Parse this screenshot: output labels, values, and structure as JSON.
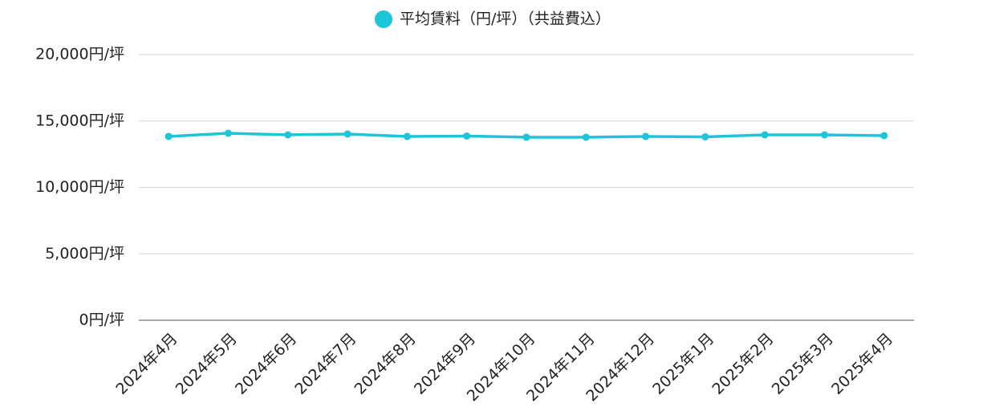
{
  "chart_data": {
    "type": "line",
    "categories": [
      "2024年4月",
      "2024年5月",
      "2024年6月",
      "2024年7月",
      "2024年8月",
      "2024年9月",
      "2024年10月",
      "2024年11月",
      "2024年12月",
      "2025年1月",
      "2025年2月",
      "2025年3月",
      "2025年4月"
    ],
    "series": [
      {
        "name": "平均賃料（円/坪）（共益費込）",
        "color": "#1cc5d8",
        "values": [
          13840,
          14080,
          13960,
          14020,
          13840,
          13870,
          13780,
          13780,
          13840,
          13810,
          13960,
          13960,
          13900
        ]
      }
    ],
    "ylim": [
      0,
      20000
    ],
    "yticks": [
      {
        "value": 0,
        "label": "0円/坪"
      },
      {
        "value": 5000,
        "label": "5,000円/坪"
      },
      {
        "value": 10000,
        "label": "10,000円/坪"
      },
      {
        "value": 15000,
        "label": "15,000円/坪"
      },
      {
        "value": 20000,
        "label": "20,000円/坪"
      }
    ],
    "grid": true,
    "legend": "top"
  }
}
